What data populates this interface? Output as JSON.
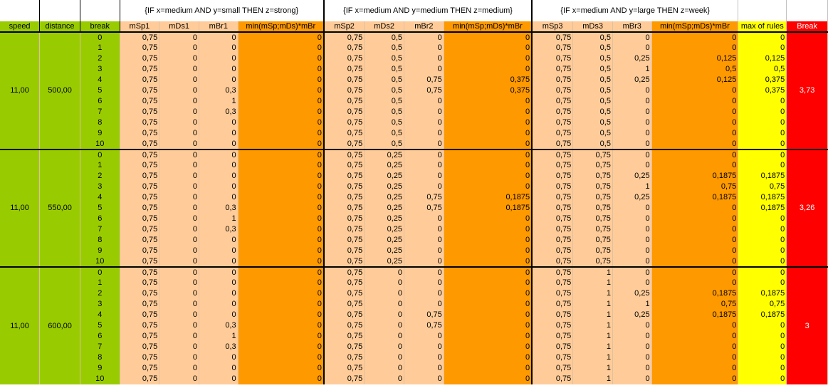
{
  "rules": {
    "r1": "{IF x=medium AND y=small THEN z=strong}",
    "r2": "{IF x=medium AND y=medium THEN z=medium}",
    "r3": "{IF x=medium AND y=large THEN z=week}"
  },
  "headers": {
    "speed": "speed",
    "distance": "distance",
    "break": "break",
    "mSp1": "mSp1",
    "mDs1": "mDs1",
    "mBr1": "mBr1",
    "min1": "min(mSp;mDs)*mBr",
    "mSp2": "mSp2",
    "mDs2": "mDs2",
    "mBr2": "mBr2",
    "min2": "min(mSp;mDs)*mBr",
    "mSp3": "mSp3",
    "mDs3": "mDs3",
    "mBr3": "mBr3",
    "min3": "min(mSp;mDs)*mBr",
    "max": "max of rules",
    "result": "Break"
  },
  "groups": [
    {
      "speed": "11,00",
      "distance": "500,00",
      "result": "3,73",
      "rows": [
        [
          "0",
          "0,75",
          "0",
          "0",
          "0",
          "0,75",
          "0,5",
          "0",
          "0",
          "0,75",
          "0,5",
          "0",
          "0",
          "0"
        ],
        [
          "1",
          "0,75",
          "0",
          "0",
          "0",
          "0,75",
          "0,5",
          "0",
          "0",
          "0,75",
          "0,5",
          "0",
          "0",
          "0"
        ],
        [
          "2",
          "0,75",
          "0",
          "0",
          "0",
          "0,75",
          "0,5",
          "0",
          "0",
          "0,75",
          "0,5",
          "0,25",
          "0,125",
          "0,125"
        ],
        [
          "3",
          "0,75",
          "0",
          "0",
          "0",
          "0,75",
          "0,5",
          "0",
          "0",
          "0,75",
          "0,5",
          "1",
          "0,5",
          "0,5"
        ],
        [
          "4",
          "0,75",
          "0",
          "0",
          "0",
          "0,75",
          "0,5",
          "0,75",
          "0,375",
          "0,75",
          "0,5",
          "0,25",
          "0,125",
          "0,375"
        ],
        [
          "5",
          "0,75",
          "0",
          "0,3",
          "0",
          "0,75",
          "0,5",
          "0,75",
          "0,375",
          "0,75",
          "0,5",
          "0",
          "0",
          "0,375"
        ],
        [
          "6",
          "0,75",
          "0",
          "1",
          "0",
          "0,75",
          "0,5",
          "0",
          "0",
          "0,75",
          "0,5",
          "0",
          "0",
          "0"
        ],
        [
          "7",
          "0,75",
          "0",
          "0,3",
          "0",
          "0,75",
          "0,5",
          "0",
          "0",
          "0,75",
          "0,5",
          "0",
          "0",
          "0"
        ],
        [
          "8",
          "0,75",
          "0",
          "0",
          "0",
          "0,75",
          "0,5",
          "0",
          "0",
          "0,75",
          "0,5",
          "0",
          "0",
          "0"
        ],
        [
          "9",
          "0,75",
          "0",
          "0",
          "0",
          "0,75",
          "0,5",
          "0",
          "0",
          "0,75",
          "0,5",
          "0",
          "0",
          "0"
        ],
        [
          "10",
          "0,75",
          "0",
          "0",
          "0",
          "0,75",
          "0,5",
          "0",
          "0",
          "0,75",
          "0,5",
          "0",
          "0",
          "0"
        ]
      ]
    },
    {
      "speed": "11,00",
      "distance": "550,00",
      "result": "3,26",
      "rows": [
        [
          "0",
          "0,75",
          "0",
          "0",
          "0",
          "0,75",
          "0,25",
          "0",
          "0",
          "0,75",
          "0,75",
          "0",
          "0",
          "0"
        ],
        [
          "1",
          "0,75",
          "0",
          "0",
          "0",
          "0,75",
          "0,25",
          "0",
          "0",
          "0,75",
          "0,75",
          "0",
          "0",
          "0"
        ],
        [
          "2",
          "0,75",
          "0",
          "0",
          "0",
          "0,75",
          "0,25",
          "0",
          "0",
          "0,75",
          "0,75",
          "0,25",
          "0,1875",
          "0,1875"
        ],
        [
          "3",
          "0,75",
          "0",
          "0",
          "0",
          "0,75",
          "0,25",
          "0",
          "0",
          "0,75",
          "0,75",
          "1",
          "0,75",
          "0,75"
        ],
        [
          "4",
          "0,75",
          "0",
          "0",
          "0",
          "0,75",
          "0,25",
          "0,75",
          "0,1875",
          "0,75",
          "0,75",
          "0,25",
          "0,1875",
          "0,1875"
        ],
        [
          "5",
          "0,75",
          "0",
          "0,3",
          "0",
          "0,75",
          "0,25",
          "0,75",
          "0,1875",
          "0,75",
          "0,75",
          "0",
          "0",
          "0,1875"
        ],
        [
          "6",
          "0,75",
          "0",
          "1",
          "0",
          "0,75",
          "0,25",
          "0",
          "0",
          "0,75",
          "0,75",
          "0",
          "0",
          "0"
        ],
        [
          "7",
          "0,75",
          "0",
          "0,3",
          "0",
          "0,75",
          "0,25",
          "0",
          "0",
          "0,75",
          "0,75",
          "0",
          "0",
          "0"
        ],
        [
          "8",
          "0,75",
          "0",
          "0",
          "0",
          "0,75",
          "0,25",
          "0",
          "0",
          "0,75",
          "0,75",
          "0",
          "0",
          "0"
        ],
        [
          "9",
          "0,75",
          "0",
          "0",
          "0",
          "0,75",
          "0,25",
          "0",
          "0",
          "0,75",
          "0,75",
          "0",
          "0",
          "0"
        ],
        [
          "10",
          "0,75",
          "0",
          "0",
          "0",
          "0,75",
          "0,25",
          "0",
          "0",
          "0,75",
          "0,75",
          "0",
          "0",
          "0"
        ]
      ]
    },
    {
      "speed": "11,00",
      "distance": "600,00",
      "result": "3",
      "rows": [
        [
          "0",
          "0,75",
          "0",
          "0",
          "0",
          "0,75",
          "0",
          "0",
          "0",
          "0,75",
          "1",
          "0",
          "0",
          "0"
        ],
        [
          "1",
          "0,75",
          "0",
          "0",
          "0",
          "0,75",
          "0",
          "0",
          "0",
          "0,75",
          "1",
          "0",
          "0",
          "0"
        ],
        [
          "2",
          "0,75",
          "0",
          "0",
          "0",
          "0,75",
          "0",
          "0",
          "0",
          "0,75",
          "1",
          "0,25",
          "0,1875",
          "0,1875"
        ],
        [
          "3",
          "0,75",
          "0",
          "0",
          "0",
          "0,75",
          "0",
          "0",
          "0",
          "0,75",
          "1",
          "1",
          "0,75",
          "0,75"
        ],
        [
          "4",
          "0,75",
          "0",
          "0",
          "0",
          "0,75",
          "0",
          "0,75",
          "0",
          "0,75",
          "1",
          "0,25",
          "0,1875",
          "0,1875"
        ],
        [
          "5",
          "0,75",
          "0",
          "0,3",
          "0",
          "0,75",
          "0",
          "0,75",
          "0",
          "0,75",
          "1",
          "0",
          "0",
          "0"
        ],
        [
          "6",
          "0,75",
          "0",
          "1",
          "0",
          "0,75",
          "0",
          "0",
          "0",
          "0,75",
          "1",
          "0",
          "0",
          "0"
        ],
        [
          "7",
          "0,75",
          "0",
          "0,3",
          "0",
          "0,75",
          "0",
          "0",
          "0",
          "0,75",
          "1",
          "0",
          "0",
          "0"
        ],
        [
          "8",
          "0,75",
          "0",
          "0",
          "0",
          "0,75",
          "0",
          "0",
          "0",
          "0,75",
          "1",
          "0",
          "0",
          "0"
        ],
        [
          "9",
          "0,75",
          "0",
          "0",
          "0",
          "0,75",
          "0",
          "0",
          "0",
          "0,75",
          "1",
          "0",
          "0",
          "0"
        ],
        [
          "10",
          "0,75",
          "0",
          "0",
          "0",
          "0,75",
          "0",
          "0",
          "0",
          "0,75",
          "1",
          "0",
          "0",
          "0"
        ]
      ]
    }
  ],
  "colors": {
    "green": "#99cc00",
    "peach": "#ffcc99",
    "orange": "#ff9900",
    "yellow": "#ffff00",
    "red": "#ff0000"
  }
}
